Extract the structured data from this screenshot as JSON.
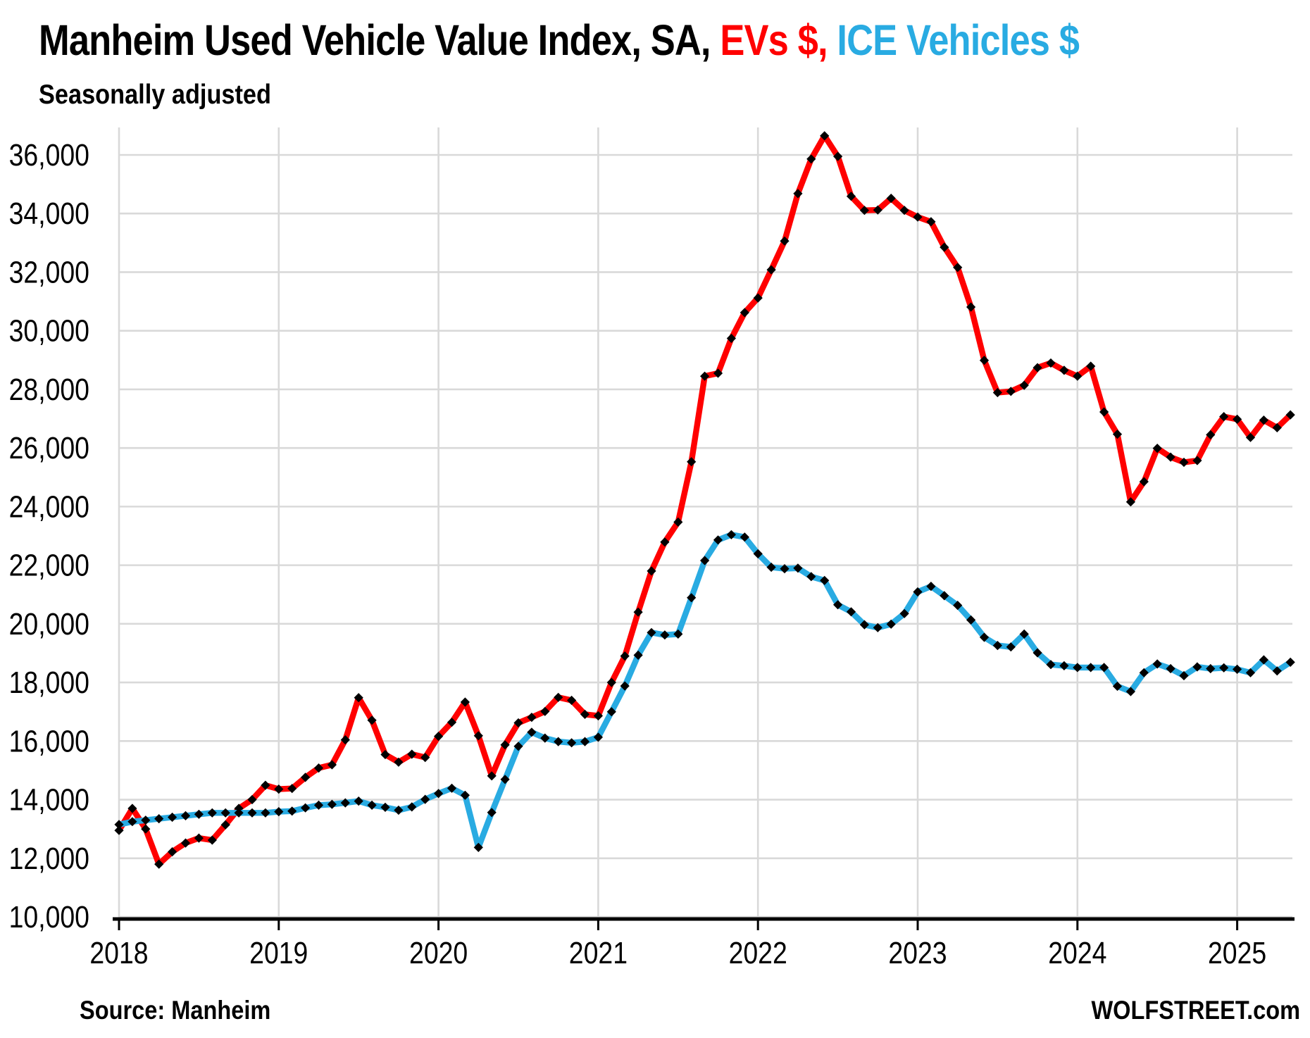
{
  "title": {
    "main": "Manheim Used Vehicle Value Index, SA, ",
    "ev_part": "EVs $, ",
    "ice_part": "ICE Vehicles $"
  },
  "subtitle": "Seasonally adjusted",
  "footer": {
    "source": "Source: Manheim",
    "branding": "WOLFSTREET.com"
  },
  "colors": {
    "ev_line": "#ff0000",
    "ice_line": "#29abe2",
    "marker": "#000000",
    "grid": "#d9d9d9",
    "axis": "#000000",
    "tick_text": "#000000"
  },
  "chart_data": {
    "type": "line",
    "title": "Manheim Used Vehicle Value Index, SA, EVs $, ICE Vehicles $",
    "subtitle": "Seasonally adjusted",
    "xlabel": "",
    "ylabel": "",
    "ylim": [
      10000,
      36940
    ],
    "grid": true,
    "legend_position": "in-title",
    "y_ticks": [
      10000,
      12000,
      14000,
      16000,
      18000,
      20000,
      22000,
      24000,
      26000,
      28000,
      30000,
      32000,
      34000,
      36000
    ],
    "x_tick_labels": [
      "2018",
      "2019",
      "2020",
      "2021",
      "2022",
      "2023",
      "2024",
      "2025"
    ],
    "x_frequency": "monthly",
    "x_months": [
      "2018-01",
      "2018-02",
      "2018-03",
      "2018-04",
      "2018-05",
      "2018-06",
      "2018-07",
      "2018-08",
      "2018-09",
      "2018-10",
      "2018-11",
      "2018-12",
      "2019-01",
      "2019-02",
      "2019-03",
      "2019-04",
      "2019-05",
      "2019-06",
      "2019-07",
      "2019-08",
      "2019-09",
      "2019-10",
      "2019-11",
      "2019-12",
      "2020-01",
      "2020-02",
      "2020-03",
      "2020-04",
      "2020-05",
      "2020-06",
      "2020-07",
      "2020-08",
      "2020-09",
      "2020-10",
      "2020-11",
      "2020-12",
      "2021-01",
      "2021-02",
      "2021-03",
      "2021-04",
      "2021-05",
      "2021-06",
      "2021-07",
      "2021-08",
      "2021-09",
      "2021-10",
      "2021-11",
      "2021-12",
      "2022-01",
      "2022-02",
      "2022-03",
      "2022-04",
      "2022-05",
      "2022-06",
      "2022-07",
      "2022-08",
      "2022-09",
      "2022-10",
      "2022-11",
      "2022-12",
      "2023-01",
      "2023-02",
      "2023-03",
      "2023-04",
      "2023-05",
      "2023-06",
      "2023-07",
      "2023-08",
      "2023-09",
      "2023-10",
      "2023-11",
      "2023-12",
      "2024-01",
      "2024-02",
      "2024-03",
      "2024-04",
      "2024-05",
      "2024-06",
      "2024-07",
      "2024-08",
      "2024-09",
      "2024-10",
      "2024-11",
      "2024-12",
      "2025-01",
      "2025-02",
      "2025-03",
      "2025-04",
      "2025-05"
    ],
    "series": [
      {
        "name": "EVs $",
        "color": "#ff0000",
        "values": [
          12950,
          13700,
          13000,
          11800,
          12220,
          12520,
          12690,
          12620,
          13140,
          13700,
          14000,
          14490,
          14360,
          14380,
          14760,
          15080,
          15190,
          16040,
          17480,
          16710,
          15540,
          15280,
          15550,
          15440,
          16160,
          16640,
          17330,
          16180,
          14810,
          15870,
          16620,
          16810,
          17010,
          17490,
          17390,
          16910,
          16860,
          18000,
          18900,
          20400,
          21800,
          22790,
          23470,
          25530,
          28450,
          28550,
          29740,
          30620,
          31120,
          32080,
          33060,
          34680,
          35860,
          36650,
          35950,
          34590,
          34110,
          34120,
          34520,
          34110,
          33880,
          33720,
          32850,
          32160,
          30810,
          28990,
          27890,
          27930,
          28140,
          28740,
          28900,
          28650,
          28450,
          28790,
          27230,
          26470,
          24160,
          24850,
          25990,
          25690,
          25510,
          25570,
          26450,
          27070,
          26980,
          26360,
          26950,
          26690,
          27130
        ]
      },
      {
        "name": "ICE Vehicles $",
        "color": "#29abe2",
        "values": [
          13150,
          13250,
          13300,
          13350,
          13400,
          13450,
          13500,
          13550,
          13550,
          13550,
          13550,
          13550,
          13590,
          13610,
          13720,
          13810,
          13840,
          13890,
          13950,
          13810,
          13740,
          13640,
          13750,
          14010,
          14210,
          14390,
          14150,
          12370,
          13560,
          14690,
          15820,
          16300,
          16100,
          15980,
          15940,
          15980,
          16130,
          17000,
          17880,
          18930,
          19700,
          19620,
          19650,
          20890,
          22160,
          22860,
          23040,
          22960,
          22390,
          21930,
          21880,
          21900,
          21610,
          21480,
          20650,
          20410,
          19970,
          19870,
          19990,
          20350,
          21090,
          21280,
          20960,
          20630,
          20130,
          19540,
          19260,
          19210,
          19650,
          19010,
          18610,
          18570,
          18510,
          18510,
          18510,
          17870,
          17690,
          18330,
          18630,
          18470,
          18230,
          18530,
          18470,
          18500,
          18450,
          18330,
          18770,
          18390,
          18690
        ]
      }
    ]
  }
}
